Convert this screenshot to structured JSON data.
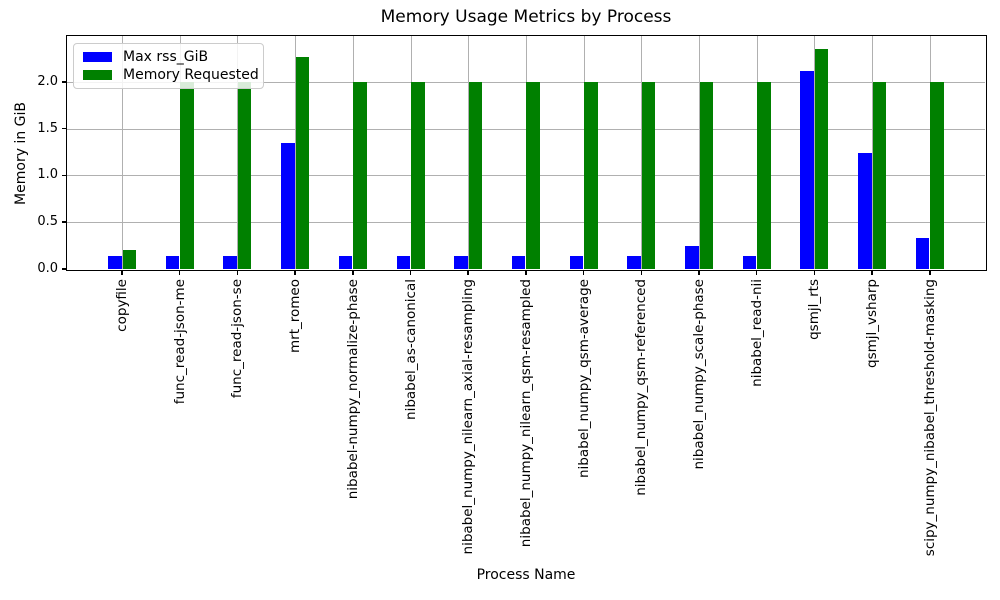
{
  "chart_data": {
    "type": "bar",
    "title": "Memory Usage Metrics by Process",
    "xlabel": "Process Name",
    "ylabel": "Memory in GiB",
    "categories": [
      "copyfile",
      "func_read-json-me",
      "func_read-json-se",
      "mrt_romeo",
      "nibabel-numpy_normalize-phase",
      "nibabel_as-canonical",
      "nibabel_numpy_nilearn_axial-resampling",
      "nibabel_numpy_nilearn_qsm-resampled",
      "nibabel_numpy_qsm-average",
      "nibabel_numpy_qsm-referenced",
      "nibabel_numpy_scale-phase",
      "nibabel_read-nii",
      "qsmjl_rts",
      "qsmjl_vsharp",
      "scipy_numpy_nibabel_threshold-masking"
    ],
    "series": [
      {
        "name": "Max rss_GiB",
        "color": "#0000ff",
        "values": [
          0.14,
          0.14,
          0.14,
          1.35,
          0.14,
          0.14,
          0.14,
          0.14,
          0.14,
          0.14,
          0.25,
          0.14,
          2.12,
          1.24,
          0.33
        ]
      },
      {
        "name": "Memory Requested",
        "color": "#008000",
        "values": [
          0.2,
          2.0,
          2.0,
          2.27,
          2.0,
          2.0,
          2.0,
          2.0,
          2.0,
          2.0,
          2.0,
          2.0,
          2.35,
          2.0,
          2.0
        ]
      }
    ],
    "yticks": [
      0.0,
      0.5,
      1.0,
      1.5,
      2.0
    ],
    "ytick_labels": [
      "0.0",
      "0.5",
      "1.0",
      "1.5",
      "2.0"
    ],
    "ylim": [
      0,
      2.49
    ],
    "grid": true,
    "grid_color": "#b0b0b0",
    "legend_position": "upper left"
  }
}
